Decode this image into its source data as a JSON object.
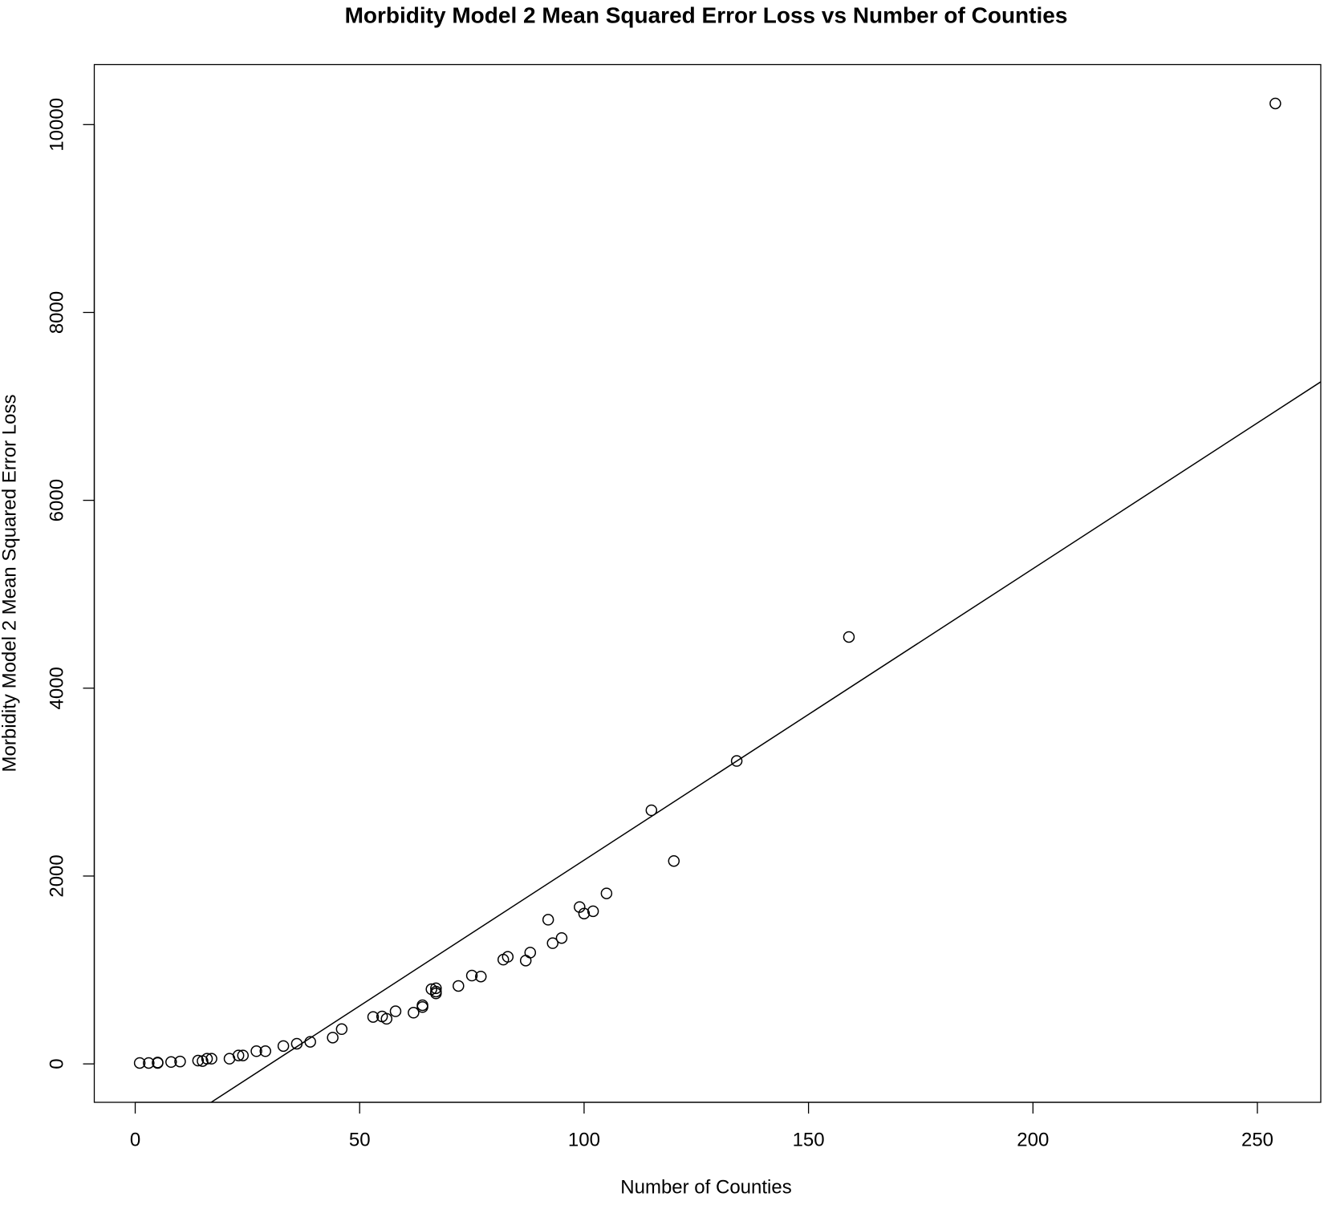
{
  "chart_data": {
    "type": "scatter",
    "title": "Morbidity Model 2 Mean Squared Error Loss vs Number of Counties",
    "x_label": "Number of Counties",
    "y_label": "Morbidity Model 2 Mean Squared Error Loss",
    "x": [
      1,
      3,
      5,
      5,
      8,
      10,
      14,
      15,
      16,
      17,
      21,
      23,
      24,
      27,
      29,
      33,
      36,
      39,
      44,
      46,
      53,
      55,
      56,
      58,
      62,
      64,
      64,
      66,
      67,
      67,
      67,
      72,
      75,
      77,
      82,
      83,
      87,
      88,
      92,
      93,
      95,
      99,
      100,
      102,
      105,
      115,
      120,
      134,
      159,
      254
    ],
    "values": [
      10,
      10,
      10,
      15,
      20,
      25,
      35,
      30,
      55,
      55,
      55,
      90,
      90,
      135,
      135,
      190,
      215,
      235,
      280,
      370,
      500,
      505,
      480,
      560,
      545,
      605,
      625,
      795,
      805,
      770,
      750,
      830,
      940,
      930,
      1110,
      1140,
      1100,
      1185,
      1535,
      1285,
      1340,
      1670,
      1600,
      1625,
      1815,
      2700,
      2160,
      3225,
      4545,
      10225
    ],
    "color": "#000000",
    "fit": {
      "intercept": -934,
      "slope": 31.03
    },
    "xlim": [
      -9.12,
      264.12
    ],
    "ylim": [
      -409,
      10639
    ],
    "xticks": [
      0,
      50,
      100,
      150,
      200,
      250
    ],
    "yticks": [
      0,
      2000,
      4000,
      6000,
      8000,
      10000
    ]
  }
}
